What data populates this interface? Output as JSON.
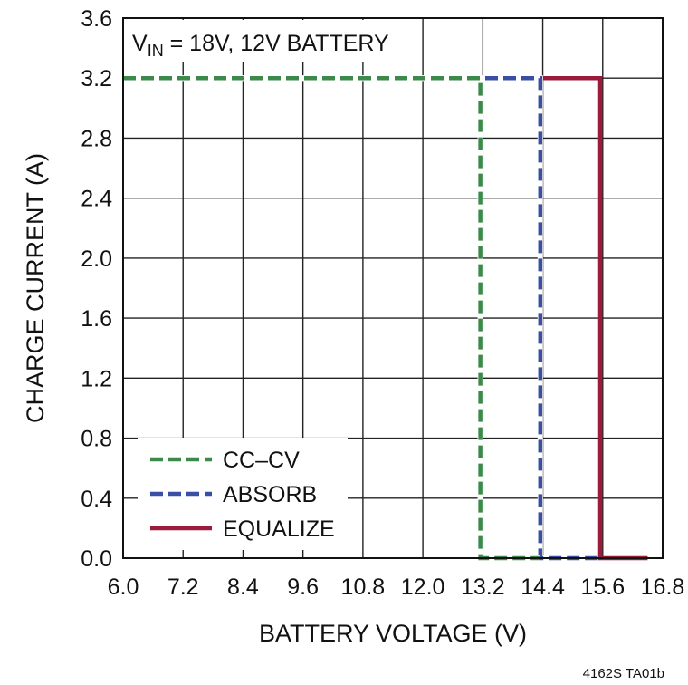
{
  "chart_data": {
    "type": "line",
    "title": "",
    "condition": {
      "prefix": "V",
      "subscript": "IN",
      "suffix": " = 18V, 12V BATTERY"
    },
    "xlabel": "BATTERY VOLTAGE (V)",
    "ylabel": "CHARGE CURRENT (A)",
    "xlim": [
      6.0,
      16.8
    ],
    "ylim": [
      0.0,
      3.6
    ],
    "xticks": [
      "6.0",
      "7.2",
      "8.4",
      "9.6",
      "10.8",
      "12.0",
      "13.2",
      "14.4",
      "15.6",
      "16.8"
    ],
    "yticks": [
      "0.0",
      "0.4",
      "0.8",
      "1.2",
      "1.6",
      "2.0",
      "2.4",
      "2.8",
      "3.2",
      "3.6"
    ],
    "grid": true,
    "legend_position": "bottom-left",
    "series": [
      {
        "name": "EQUALIZE",
        "color": "#9b1b3a",
        "style": "solid",
        "points": [
          [
            6.0,
            3.2
          ],
          [
            15.55,
            3.2
          ],
          [
            15.55,
            0.0
          ],
          [
            16.5,
            0.0
          ]
        ]
      },
      {
        "name": "ABSORB",
        "color": "#3a4fa3",
        "style": "dashed",
        "points": [
          [
            6.0,
            3.2
          ],
          [
            14.35,
            3.2
          ],
          [
            14.35,
            0.0
          ],
          [
            15.5,
            0.0
          ]
        ]
      },
      {
        "name": "CC–CV",
        "color": "#3c8a4b",
        "style": "dashed",
        "points": [
          [
            6.0,
            3.2
          ],
          [
            13.15,
            3.2
          ],
          [
            13.15,
            0.0
          ],
          [
            14.35,
            0.0
          ]
        ]
      }
    ],
    "legend_order": [
      "CC–CV",
      "ABSORB",
      "EQUALIZE"
    ]
  },
  "figure_id": "4162S TA01b"
}
